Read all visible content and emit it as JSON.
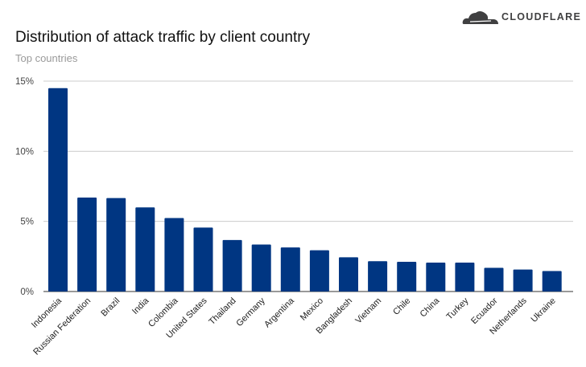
{
  "brand": {
    "name": "CLOUDFLARE",
    "color": "#404041"
  },
  "chart_data": {
    "type": "bar",
    "title": "Distribution of attack traffic by client country",
    "subtitle": "Top countries",
    "xlabel": "",
    "ylabel": "",
    "ylim": [
      0,
      15
    ],
    "yticks": [
      0,
      5,
      10,
      15
    ],
    "ytick_labels": [
      "0%",
      "5%",
      "10%",
      "15%"
    ],
    "grid": true,
    "bar_color": "#003682",
    "categories": [
      "Indonesia",
      "Russian Federation",
      "Brazil",
      "India",
      "Colombia",
      "United States",
      "Thailand",
      "Germany",
      "Argentina",
      "Mexico",
      "Bangladesh",
      "Vietnam",
      "Chile",
      "China",
      "Turkey",
      "Ecuador",
      "Netherlands",
      "Ukraine"
    ],
    "values": [
      14.5,
      6.7,
      6.66,
      6.0,
      5.24,
      4.56,
      3.67,
      3.35,
      3.14,
      2.94,
      2.44,
      2.16,
      2.12,
      2.06,
      2.06,
      1.69,
      1.57,
      1.46
    ]
  }
}
